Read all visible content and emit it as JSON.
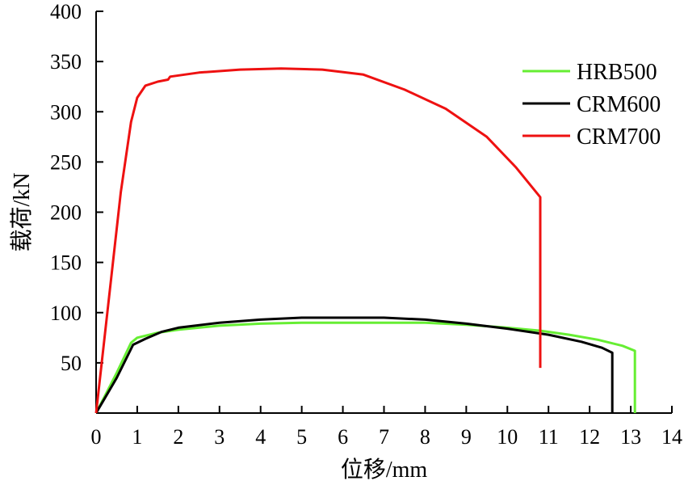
{
  "chart_data": {
    "type": "line",
    "title": "",
    "xlabel": "位移/mm",
    "ylabel": "载荷/kN",
    "xlim": [
      0,
      14
    ],
    "ylim": [
      0,
      400
    ],
    "x_ticks": [
      0,
      1,
      2,
      3,
      4,
      5,
      6,
      7,
      8,
      9,
      10,
      11,
      12,
      13,
      14
    ],
    "y_ticks": [
      50,
      100,
      150,
      200,
      250,
      300,
      350,
      400
    ],
    "grid": false,
    "legend": "right",
    "series": [
      {
        "name": "HRB500",
        "color": "#66ee33",
        "points": [
          [
            0,
            0
          ],
          [
            0.5,
            40
          ],
          [
            0.85,
            70
          ],
          [
            1.0,
            75
          ],
          [
            1.2,
            77
          ],
          [
            1.5,
            80
          ],
          [
            2,
            83
          ],
          [
            3,
            87
          ],
          [
            4,
            89
          ],
          [
            5,
            90
          ],
          [
            6,
            90
          ],
          [
            7,
            90
          ],
          [
            8,
            90
          ],
          [
            9,
            88
          ],
          [
            10,
            85
          ],
          [
            10.8,
            82
          ],
          [
            11.5,
            78
          ],
          [
            12.2,
            73
          ],
          [
            12.8,
            67
          ],
          [
            13.1,
            62
          ],
          [
            13.1,
            0
          ]
        ]
      },
      {
        "name": "CRM600",
        "color": "#000000",
        "points": [
          [
            0,
            0
          ],
          [
            0.5,
            35
          ],
          [
            0.9,
            68
          ],
          [
            1.2,
            74
          ],
          [
            1.6,
            81
          ],
          [
            2,
            85
          ],
          [
            3,
            90
          ],
          [
            4,
            93
          ],
          [
            5,
            95
          ],
          [
            6,
            95
          ],
          [
            7,
            95
          ],
          [
            8,
            93
          ],
          [
            9,
            89
          ],
          [
            10,
            84
          ],
          [
            11,
            78
          ],
          [
            11.8,
            71
          ],
          [
            12.3,
            65
          ],
          [
            12.55,
            60
          ],
          [
            12.55,
            0
          ]
        ]
      },
      {
        "name": "CRM700",
        "color": "#ee1111",
        "points": [
          [
            0,
            0
          ],
          [
            0.3,
            110
          ],
          [
            0.6,
            220
          ],
          [
            0.85,
            290
          ],
          [
            1.0,
            314
          ],
          [
            1.2,
            326
          ],
          [
            1.5,
            330
          ],
          [
            1.75,
            332
          ],
          [
            1.8,
            335
          ],
          [
            2.5,
            339
          ],
          [
            3.5,
            342
          ],
          [
            4.5,
            343
          ],
          [
            5.5,
            342
          ],
          [
            6.5,
            337
          ],
          [
            7.5,
            322
          ],
          [
            8.5,
            303
          ],
          [
            9.5,
            275
          ],
          [
            10.2,
            245
          ],
          [
            10.8,
            215
          ],
          [
            10.8,
            45
          ]
        ]
      }
    ]
  }
}
